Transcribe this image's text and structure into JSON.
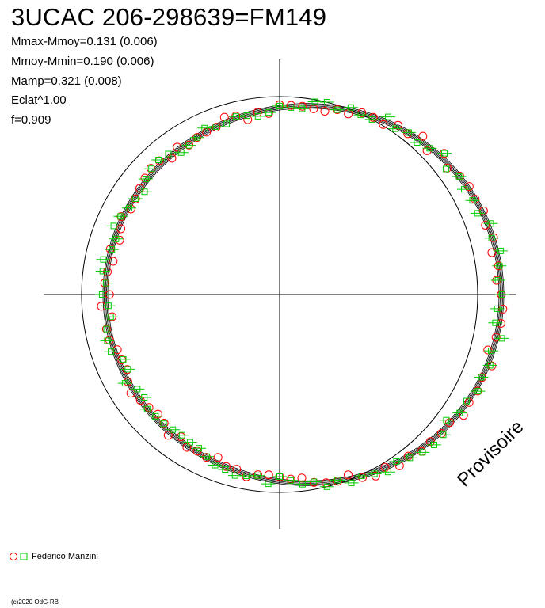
{
  "title": "3UCAC 206-298639=FM149",
  "stats": [
    "Mmax-Mmoy=0.131 (0.006)",
    "Mmoy-Mmin=0.190 (0.006)",
    "Mamp=0.321 (0.008)",
    "Eclat^1.00",
    "f=0.909"
  ],
  "legend": {
    "observer": "Federico Manzini",
    "marker_colors": [
      "#ff0000",
      "#00cc00"
    ]
  },
  "watermark": "Provisoire",
  "copyright": "(c)2020 OdG-RB",
  "colors": {
    "observations_circle": "#ff0000",
    "observations_square": "#00cc00",
    "fit": "#000000",
    "reference": "#000000"
  },
  "chart_data": {
    "type": "scatter",
    "description_kind": "polar light curve",
    "series": [
      {
        "name": "Federico Manzini",
        "marker": "circle+square",
        "color": "#00cc00"
      }
    ],
    "reference_circle": {
      "radius": 1.0
    },
    "fit_curve": {
      "amplitude_max": 0.131,
      "amplitude_min": 0.19,
      "total_amplitude": 0.321,
      "frequency_factor": 0.909
    },
    "grid": false,
    "legend_position": "bottom-left"
  }
}
